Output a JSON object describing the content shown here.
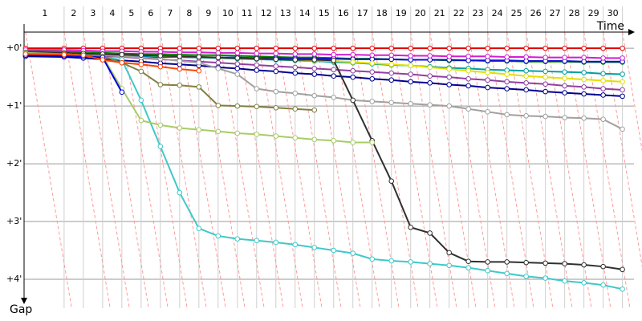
{
  "chart_data": {
    "type": "line",
    "x_label": "Time",
    "y_label": "Gap",
    "laps": [
      "1",
      "2",
      "3",
      "4",
      "5",
      "6",
      "7",
      "8",
      "9",
      "10",
      "11",
      "12",
      "13",
      "14",
      "15",
      "16",
      "17",
      "18",
      "19",
      "20",
      "21",
      "22",
      "23",
      "24",
      "25",
      "26",
      "27",
      "28",
      "29",
      "30"
    ],
    "x": [
      0,
      2,
      3,
      4,
      5,
      6,
      7,
      8,
      9,
      10,
      11,
      12,
      13,
      14,
      15,
      16,
      17,
      18,
      19,
      20,
      21,
      22,
      23,
      24,
      25,
      26,
      27,
      28,
      29,
      30,
      31
    ],
    "xlim": [
      -0.08,
      31.6
    ],
    "ylim": [
      -0.28,
      4.5
    ],
    "yticks": [
      {
        "value": 0,
        "label": "+0'"
      },
      {
        "value": 1,
        "label": "+1'"
      },
      {
        "value": 2,
        "label": "+2'"
      },
      {
        "value": 3,
        "label": "+3'"
      },
      {
        "value": 4,
        "label": "+4'"
      }
    ],
    "grid": true,
    "series": [
      {
        "color": "#e00000",
        "values": [
          0,
          0,
          0,
          0,
          0,
          0,
          0,
          0,
          0,
          0,
          0,
          0,
          0,
          0,
          0,
          0,
          0,
          0,
          0,
          0,
          0,
          0,
          0,
          0,
          0,
          0,
          0,
          0,
          0,
          0,
          0
        ]
      },
      {
        "color": "#008000",
        "values": [
          0.05,
          0.06,
          0.07,
          0.08,
          0.09,
          0.1,
          0.1,
          0.11,
          0.12,
          0.12,
          0.13,
          0.14,
          0.15,
          0.16,
          0.16,
          0.17,
          0.18,
          0.18,
          0.19,
          0.2,
          0.2,
          0.21,
          0.21,
          0.22,
          0.22,
          0.23,
          0.23,
          0.23,
          0.24,
          0.24,
          0.24
        ]
      },
      {
        "color": "#1010d0",
        "values": [
          0.12,
          0.13,
          0.13,
          0.14,
          0.14,
          0.15,
          0.15,
          0.15,
          0.16,
          0.16,
          0.16,
          0.17,
          0.17,
          0.18,
          0.18,
          0.18,
          0.19,
          0.19,
          0.19,
          0.2,
          0.2,
          0.2,
          0.21,
          0.21,
          0.21,
          0.22,
          0.22,
          0.22,
          0.23,
          0.23,
          0.23
        ]
      },
      {
        "color": "#d020d0",
        "values": [
          0.03,
          0.03,
          0.04,
          0.05,
          0.05,
          0.06,
          0.06,
          0.07,
          0.07,
          0.08,
          0.08,
          0.09,
          0.09,
          0.1,
          0.1,
          0.11,
          0.11,
          0.12,
          0.12,
          0.13,
          0.13,
          0.14,
          0.14,
          0.14,
          0.15,
          0.15,
          0.16,
          0.16,
          0.16,
          0.17,
          0.17
        ]
      },
      {
        "color": "#00a0a0",
        "values": [
          0.08,
          0.09,
          0.1,
          0.11,
          0.12,
          0.13,
          0.14,
          0.15,
          0.16,
          0.17,
          0.18,
          0.19,
          0.2,
          0.21,
          0.22,
          0.24,
          0.25,
          0.27,
          0.29,
          0.3,
          0.32,
          0.34,
          0.35,
          0.37,
          0.38,
          0.39,
          0.4,
          0.41,
          0.42,
          0.44,
          0.45
        ]
      },
      {
        "color": "#e0e000",
        "values": [
          0.07,
          0.08,
          0.09,
          0.1,
          0.11,
          0.12,
          0.13,
          0.14,
          0.15,
          0.16,
          0.17,
          0.18,
          0.19,
          0.2,
          0.21,
          0.22,
          0.24,
          0.26,
          0.28,
          0.3,
          0.33,
          0.36,
          0.39,
          0.42,
          0.45,
          0.48,
          0.5,
          0.52,
          0.54,
          0.56,
          0.58
        ]
      },
      {
        "color": "#9040a0",
        "values": [
          0.1,
          0.11,
          0.12,
          0.13,
          0.15,
          0.17,
          0.19,
          0.21,
          0.23,
          0.25,
          0.27,
          0.29,
          0.31,
          0.33,
          0.35,
          0.37,
          0.39,
          0.41,
          0.43,
          0.45,
          0.48,
          0.5,
          0.53,
          0.55,
          0.58,
          0.6,
          0.62,
          0.65,
          0.67,
          0.7,
          0.72
        ]
      },
      {
        "color": "#000090",
        "values": [
          0.14,
          0.15,
          0.17,
          0.19,
          0.21,
          0.23,
          0.26,
          0.28,
          0.3,
          0.33,
          0.35,
          0.38,
          0.4,
          0.43,
          0.45,
          0.48,
          0.5,
          0.53,
          0.55,
          0.58,
          0.6,
          0.63,
          0.65,
          0.68,
          0.7,
          0.72,
          0.75,
          0.77,
          0.79,
          0.81,
          0.83
        ]
      },
      {
        "color": "#a0a0a0",
        "values": [
          0.08,
          0.09,
          0.1,
          0.12,
          0.14,
          0.16,
          0.18,
          0.22,
          0.25,
          0.35,
          0.45,
          0.7,
          0.75,
          0.78,
          0.82,
          0.85,
          0.9,
          0.92,
          0.94,
          0.96,
          0.98,
          1.0,
          1.05,
          1.1,
          1.15,
          1.17,
          1.18,
          1.2,
          1.21,
          1.23,
          1.4
        ]
      },
      {
        "color": "#303030",
        "values": [
          0.07,
          0.08,
          0.09,
          0.1,
          0.11,
          0.12,
          0.13,
          0.14,
          0.15,
          0.16,
          0.17,
          0.18,
          0.19,
          0.2,
          0.2,
          0.21,
          0.9,
          1.6,
          2.3,
          3.1,
          3.2,
          3.54,
          3.69,
          3.7,
          3.7,
          3.71,
          3.72,
          3.73,
          3.75,
          3.78,
          3.83
        ]
      },
      {
        "color": "#40c8c8",
        "values": [
          0.1,
          0.1,
          0.12,
          0.15,
          0.2,
          0.9,
          1.7,
          2.5,
          3.12,
          3.25,
          3.3,
          3.33,
          3.36,
          3.4,
          3.45,
          3.5,
          3.55,
          3.65,
          3.68,
          3.7,
          3.73,
          3.76,
          3.8,
          3.85,
          3.9,
          3.95,
          3.98,
          4.03,
          4.06,
          4.1,
          4.17
        ]
      },
      {
        "color": "#a8cc68",
        "values": [
          0.08,
          0.1,
          0.12,
          0.14,
          0.7,
          1.25,
          1.33,
          1.38,
          1.41,
          1.44,
          1.47,
          1.49,
          1.52,
          1.55,
          1.58,
          1.6,
          1.63,
          1.63,
          null,
          null,
          null,
          null,
          null,
          null,
          null,
          null,
          null,
          null,
          null,
          null,
          null
        ]
      },
      {
        "color": "#808040",
        "values": [
          0.1,
          0.1,
          0.12,
          0.14,
          0.25,
          0.4,
          0.63,
          0.64,
          0.67,
          0.99,
          1.0,
          1.01,
          1.03,
          1.05,
          1.07,
          null,
          null,
          null,
          null,
          null,
          null,
          null,
          null,
          null,
          null,
          null,
          null,
          null,
          null,
          null,
          null
        ]
      },
      {
        "color": "#0000e0",
        "values": [
          0.12,
          0.13,
          0.14,
          0.16,
          0.76,
          null,
          null,
          null,
          null,
          null,
          null,
          null,
          null,
          null,
          null,
          null,
          null,
          null,
          null,
          null,
          null,
          null,
          null,
          null,
          null,
          null,
          null,
          null,
          null,
          null,
          null
        ]
      },
      {
        "color": "#ff4000",
        "values": [
          0.1,
          0.11,
          0.12,
          0.2,
          0.25,
          0.28,
          0.32,
          0.36,
          0.39,
          null,
          null,
          null,
          null,
          null,
          null,
          null,
          null,
          null,
          null,
          null,
          null,
          null,
          null,
          null,
          null,
          null,
          null,
          null,
          null,
          null,
          null
        ]
      }
    ]
  }
}
